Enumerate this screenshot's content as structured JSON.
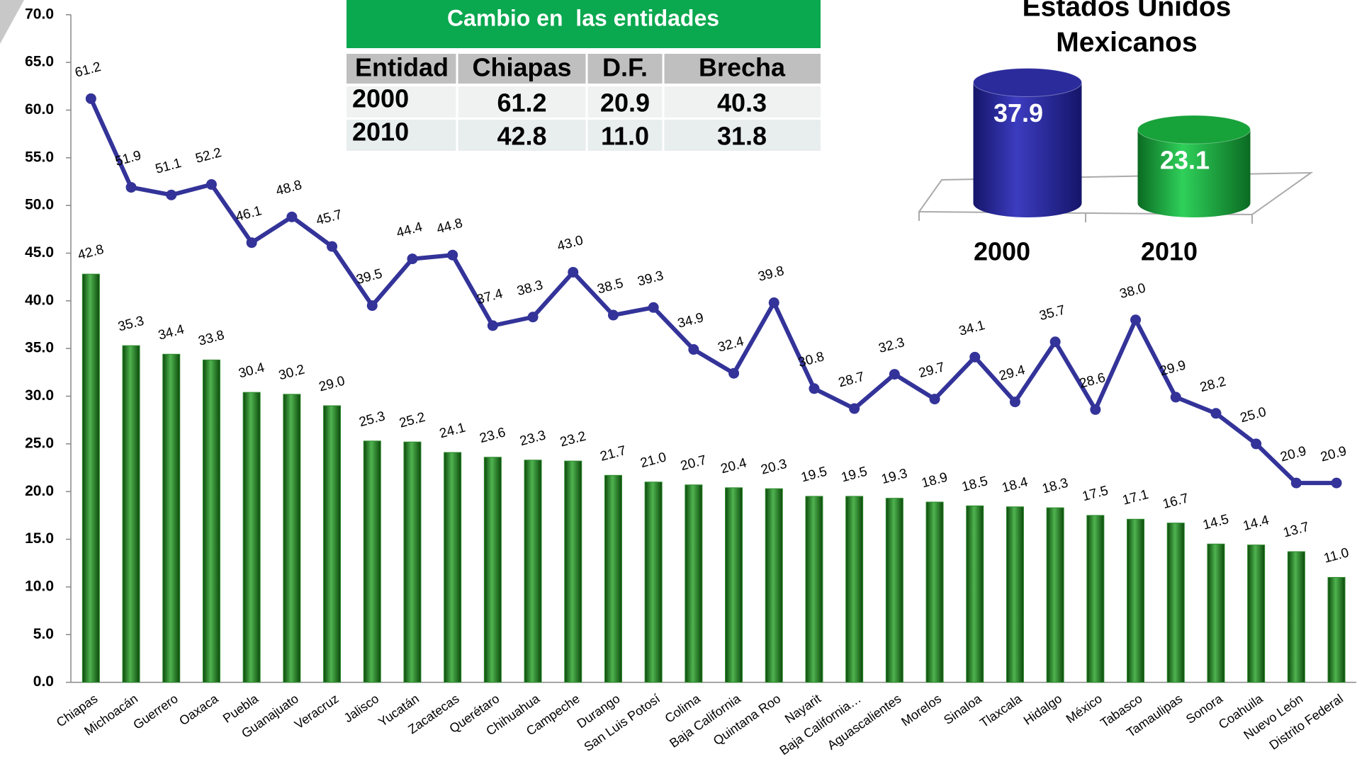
{
  "chart_data": [
    {
      "type": "bar-line",
      "categories": [
        "Chiapas",
        "Michoacán",
        "Guerrero",
        "Oaxaca",
        "Puebla",
        "Guanajuato",
        "Veracruz",
        "Jalisco",
        "Yucatán",
        "Zacatecas",
        "Querétaro",
        "Chihuahua",
        "Campeche",
        "Durango",
        "San Luis Potosí",
        "Colima",
        "Baja California",
        "Quintana Roo",
        "Nayarit",
        "Baja California…",
        "Aguascalientes",
        "Morelos",
        "Sinaloa",
        "Tlaxcala",
        "Hidalgo",
        "México",
        "Tabasco",
        "Tamaulipas",
        "Sonora",
        "Coahuila",
        "Nuevo León",
        "Distrito Federal"
      ],
      "series": [
        {
          "type": "bar",
          "color": "#2e8b2e",
          "values": [
            42.8,
            35.3,
            34.4,
            33.8,
            30.4,
            30.2,
            29.0,
            25.3,
            25.2,
            24.1,
            23.6,
            23.3,
            23.2,
            21.7,
            21.0,
            20.7,
            20.4,
            20.3,
            19.5,
            19.5,
            19.3,
            18.9,
            18.5,
            18.4,
            18.3,
            17.5,
            17.1,
            16.7,
            14.5,
            14.4,
            13.7,
            11.0
          ],
          "value_labels": [
            "42.8",
            "35.3",
            "34.4",
            "33.8",
            "30.4",
            "30.2",
            "29.0",
            "25.3",
            "25.2",
            "24.1",
            "23.6",
            "23.3",
            "23.2",
            "21.7",
            "21.0",
            "20.7",
            "20.4",
            "20.3",
            "19.5",
            "19.5",
            "19.3",
            "18.9",
            "18.5",
            "18.4",
            "18.3",
            "17.5",
            "17.1",
            "16.7",
            "14.5",
            "14.4",
            "13.7",
            "11.0"
          ]
        },
        {
          "type": "line",
          "color": "#333399",
          "values": [
            61.2,
            51.9,
            51.1,
            52.2,
            46.1,
            48.8,
            45.7,
            39.5,
            44.4,
            44.8,
            37.4,
            38.3,
            43.0,
            38.5,
            39.3,
            34.9,
            32.4,
            39.8,
            30.8,
            28.7,
            32.3,
            29.7,
            34.1,
            29.4,
            35.7,
            28.6,
            38.0,
            29.9,
            28.2,
            25.0,
            20.9,
            20.9
          ],
          "value_labels": [
            "61.2",
            "51.9",
            "51.1",
            "52.2",
            "46.1",
            "48.8",
            "45.7",
            "39.5",
            "44.4",
            "44.8",
            "37.4",
            "38.3",
            "43.0",
            "38.5",
            "39.3",
            "34.9",
            "32.4",
            "39.8",
            "30.8",
            "28.7",
            "32.3",
            "29.7",
            "34.1",
            "29.4",
            "35.7",
            "28.6",
            "38.0",
            "29.9",
            "28.2",
            "25.0",
            "20.9",
            "20.9"
          ]
        }
      ],
      "ylim": [
        0,
        70
      ],
      "yticks": [
        {
          "value": 0,
          "label": "0.0"
        },
        {
          "value": 5,
          "label": "5.0"
        },
        {
          "value": 10,
          "label": "10.0"
        },
        {
          "value": 15,
          "label": "15.0"
        },
        {
          "value": 20,
          "label": "20.0"
        },
        {
          "value": 25,
          "label": "25.0"
        },
        {
          "value": 30,
          "label": "30.0"
        },
        {
          "value": 35,
          "label": "35.0"
        },
        {
          "value": 40,
          "label": "40.0"
        },
        {
          "value": 45,
          "label": "45.0"
        },
        {
          "value": 50,
          "label": "50.0"
        },
        {
          "value": 55,
          "label": "55.0"
        },
        {
          "value": 60,
          "label": "60.0"
        },
        {
          "value": 65,
          "label": "65.0"
        },
        {
          "value": 70,
          "label": "70.0"
        }
      ],
      "grid": false
    },
    {
      "type": "cylinder",
      "title": "Estados Unidos Mexicanos",
      "categories": [
        "2000",
        "2010"
      ],
      "values": [
        37.9,
        23.1
      ],
      "colors": [
        "#2b2b9c",
        "#17a23a"
      ]
    }
  ],
  "table": {
    "title": "Cambio en  las entidades",
    "header": [
      "Entidad",
      "Chiapas",
      "D.F.",
      "Brecha"
    ],
    "rows": [
      [
        "2000",
        "61.2",
        "20.9",
        "40.3"
      ],
      [
        "2010",
        "42.8",
        "11.0",
        "31.8"
      ]
    ]
  }
}
